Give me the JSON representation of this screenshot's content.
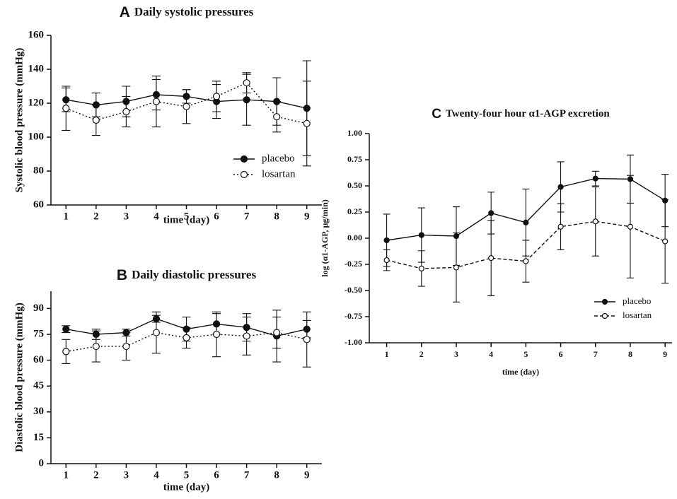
{
  "chart_data": [
    {
      "type": "line",
      "panel": "A",
      "title": "Daily systolic pressures",
      "xlabel": "time (day)",
      "ylabel": "Systolic blood pressure  (mmHg)",
      "x": [
        1,
        2,
        3,
        4,
        5,
        6,
        7,
        8,
        9
      ],
      "xlim": [
        0.5,
        9.5
      ],
      "xticks": [
        1,
        2,
        3,
        4,
        5,
        6,
        7,
        8,
        9
      ],
      "ylim": [
        60,
        160
      ],
      "yticks": [
        60,
        80,
        100,
        120,
        140,
        160
      ],
      "legend": "lower right",
      "series": [
        {
          "name": "placebo",
          "color": "#111111",
          "style": "solid",
          "marker": "filled",
          "values": [
            122,
            119,
            121,
            125,
            124,
            121,
            122,
            121,
            117
          ],
          "errors": [
            7,
            7,
            9,
            9,
            4,
            10,
            15,
            14,
            28
          ]
        },
        {
          "name": "losartan",
          "color": "#111111",
          "style": "dotted",
          "marker": "open",
          "values": [
            117,
            110,
            115,
            121,
            118,
            124,
            132,
            112,
            108
          ],
          "errors": [
            13,
            9,
            9,
            15,
            10,
            9,
            6,
            9,
            25
          ]
        }
      ]
    },
    {
      "type": "line",
      "panel": "B",
      "title": "Daily diastolic pressures",
      "xlabel": "time (day)",
      "ylabel": "Diastolic blood pressure (mmHg)",
      "x": [
        1,
        2,
        3,
        4,
        5,
        6,
        7,
        8,
        9
      ],
      "xlim": [
        0.5,
        9.5
      ],
      "xticks": [
        1,
        2,
        3,
        4,
        5,
        6,
        7,
        8,
        9
      ],
      "ylim": [
        0,
        100
      ],
      "yticks": [
        0,
        15,
        30,
        45,
        60,
        75,
        90
      ],
      "series": [
        {
          "name": "placebo",
          "color": "#111111",
          "style": "solid",
          "marker": "filled",
          "values": [
            78,
            75,
            76,
            84,
            78,
            81,
            79,
            74,
            78
          ],
          "errors": [
            2,
            3,
            2,
            2,
            7,
            6,
            8,
            15,
            5
          ]
        },
        {
          "name": "losartan",
          "color": "#111111",
          "style": "dotted",
          "marker": "open",
          "values": [
            65,
            68,
            68,
            76,
            73,
            75,
            74,
            76,
            72
          ],
          "errors": [
            7,
            9,
            8,
            12,
            6,
            13,
            11,
            9,
            16
          ]
        }
      ]
    },
    {
      "type": "line",
      "panel": "C",
      "title": "Twenty-four hour α1-AGP excretion",
      "xlabel": "time (day)",
      "ylabel": "log (α1-AGP, µg/min)",
      "x": [
        1,
        2,
        3,
        4,
        5,
        6,
        7,
        8,
        9
      ],
      "xlim": [
        0.5,
        9.2
      ],
      "xticks": [
        1,
        2,
        3,
        4,
        5,
        6,
        7,
        8,
        9
      ],
      "ylim": [
        -1,
        1
      ],
      "legend": "lower right",
      "yticks": [
        {
          "value": -1,
          "label": "-1.00"
        },
        {
          "value": -0.75,
          "label": "-0.75"
        },
        {
          "value": -0.5,
          "label": "-0.50"
        },
        {
          "value": -0.25,
          "label": "-0.25"
        },
        {
          "value": 0,
          "label": "0.00"
        },
        {
          "value": 0.25,
          "label": "0.25"
        },
        {
          "value": 0.5,
          "label": "0.50"
        },
        {
          "value": 0.75,
          "label": "0.75"
        },
        {
          "value": 1,
          "label": "1.00"
        }
      ],
      "series": [
        {
          "name": "placebo",
          "color": "#111111",
          "style": "solid",
          "marker": "filled",
          "values": [
            -0.02,
            0.03,
            0.02,
            0.24,
            0.15,
            0.49,
            0.57,
            0.565,
            0.36
          ],
          "errors": [
            0.25,
            0.26,
            0.28,
            0.2,
            0.32,
            0.24,
            0.07,
            0.23,
            0.25
          ]
        },
        {
          "name": "losartan",
          "color": "#111111",
          "style": "dashed",
          "marker": "open",
          "values": [
            -0.21,
            -0.29,
            -0.28,
            -0.19,
            -0.22,
            0.11,
            0.16,
            0.11,
            -0.03
          ],
          "errors": [
            0.1,
            0.17,
            0.33,
            0.36,
            0.2,
            0.22,
            0.33,
            0.49,
            0.4
          ]
        }
      ]
    }
  ]
}
